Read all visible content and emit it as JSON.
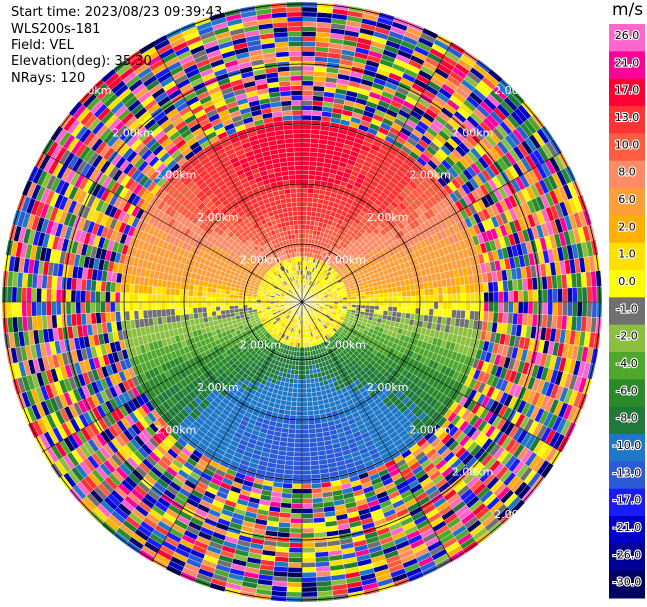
{
  "info": {
    "start_time": "Start time: 2023/08/23 09:39:43",
    "station": "WLS200s-181",
    "field": "Field: VEL",
    "elevation": "Elevation(deg): 35.30",
    "nrays": "NRays: 120"
  },
  "colorbar": {
    "unit": "m/s",
    "ticks": [
      "26.0",
      "21.0",
      "17.0",
      "13.0",
      "10.0",
      "8.0",
      "6.0",
      "2.0",
      "1.0",
      "0.0",
      "-1.0",
      "-2.0",
      "-4.0",
      "-6.0",
      "-8.0",
      "-10.0",
      "-13.0",
      "-17.0",
      "-21.0",
      "-26.0",
      "-30.0"
    ],
    "colors": [
      "#ff66cc",
      "#ff0099",
      "#ff0033",
      "#ff3333",
      "#ff5d41",
      "#ff8a66",
      "#ff9f3a",
      "#ffb000",
      "#ffe000",
      "#ffff00",
      "#707070",
      "#8abf40",
      "#4fa82c",
      "#2a8a2a",
      "#1f7a3a",
      "#1f77c8",
      "#2a5ad6",
      "#1a1aff",
      "#0000c8",
      "#000096",
      "#000060"
    ]
  },
  "chart_data": {
    "type": "heatmap",
    "title": "",
    "projection": "polar (PPI)",
    "field": "VEL",
    "units": "m/s",
    "nrays": 120,
    "range_ring_labels": [
      "2.00km",
      "2.00km",
      "2.00km",
      "2.00km",
      "2.00km",
      "2.00km",
      "2.00km",
      "2.00km",
      "2.00km",
      "2.00km",
      "2.00km",
      "2.00km",
      "2.00km",
      "2.00km",
      "2.00km",
      "2.00km",
      "2.00km",
      "2.00km"
    ],
    "pattern": [
      {
        "azimuth_deg_start": 0,
        "azimuth_deg_end": 360,
        "inner_region_approx_velocity_ms": 0.0
      },
      {
        "sector": "north",
        "approx_velocity_ms": 13.0
      },
      {
        "sector": "northwest/northeast mid",
        "approx_velocity_ms": 6.0
      },
      {
        "sector": "east/west band",
        "approx_velocity_ms": 2.0
      },
      {
        "sector": "southwest/southeast",
        "approx_velocity_ms": -2.0
      },
      {
        "sector": "south inner",
        "approx_velocity_ms": -6.0
      },
      {
        "sector": "south outer",
        "approx_velocity_ms": -10.0
      }
    ],
    "outer_ring": "noise (all colors)"
  }
}
